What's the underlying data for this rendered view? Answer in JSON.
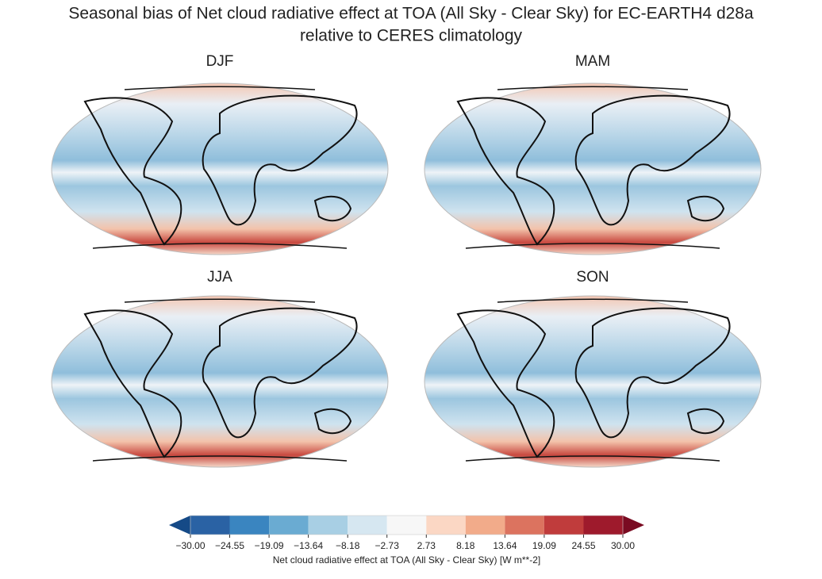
{
  "title": "Seasonal bias of Net cloud radiative effect at TOA (All Sky - Clear Sky) for EC-EARTH4 d28a",
  "subtitle": "relative to CERES climatology",
  "panels": [
    {
      "title": "DJF"
    },
    {
      "title": "MAM"
    },
    {
      "title": "JJA"
    },
    {
      "title": "SON"
    }
  ],
  "colorbar": {
    "label": "Net cloud radiative effect at TOA (All Sky - Clear Sky) [W m**-2]",
    "ticks": [
      {
        "value": -30,
        "label": "−30.00"
      },
      {
        "value": -24.55,
        "label": "−24.55"
      },
      {
        "value": -19.09,
        "label": "−19.09"
      },
      {
        "value": -13.64,
        "label": "−13.64"
      },
      {
        "value": -8.18,
        "label": "−8.18"
      },
      {
        "value": -2.73,
        "label": "−2.73"
      },
      {
        "value": 2.73,
        "label": "2.73"
      },
      {
        "value": 8.18,
        "label": "8.18"
      },
      {
        "value": 13.64,
        "label": "13.64"
      },
      {
        "value": 19.09,
        "label": "19.09"
      },
      {
        "value": 24.55,
        "label": "24.55"
      },
      {
        "value": 30,
        "label": "30.00"
      }
    ],
    "colors": [
      "#2a62a4",
      "#3a85c0",
      "#6aabd2",
      "#a8cfe4",
      "#d6e7f1",
      "#f7f7f7",
      "#fbd7c4",
      "#f2ab8a",
      "#dc735f",
      "#c03c3c",
      "#9e1a2c"
    ],
    "under_color": "#154a87",
    "over_color": "#7a0b22"
  }
}
